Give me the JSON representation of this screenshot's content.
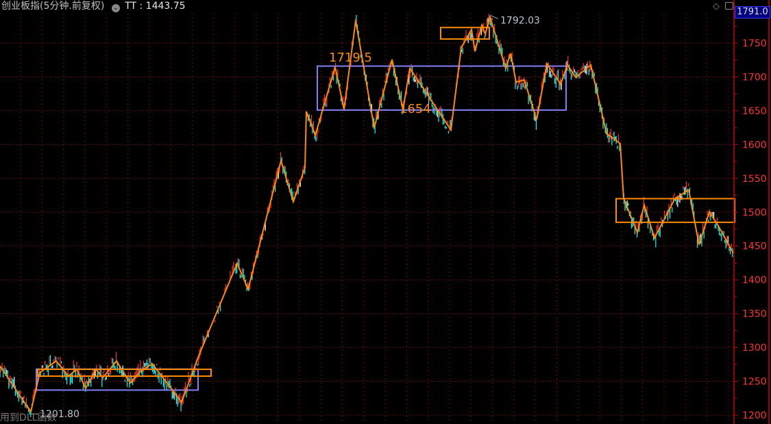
{
  "header": {
    "title": "创业板指(5分钟.前复权)",
    "indicator_icon": "chevron-down-circle-icon",
    "indicator_label": "TT",
    "indicator_value": "1443.75"
  },
  "footer_text": "用到DLL函数",
  "toolbar_icons": [
    "diamond-icon",
    "toggle-panel-icon"
  ],
  "current_price_label": "1791.0",
  "colors": {
    "background": "#000000",
    "axis": "#cc0000",
    "grid": "#b00000",
    "tick_label": "#ff3232",
    "zigzag": "#ff8c00",
    "box_blue": "#8080ff",
    "box_orange": "#ff8c00",
    "bar_up": "#ff3232",
    "bar_down": "#00ffff",
    "bar_flat": "#ffffff"
  },
  "chart_data": {
    "type": "line",
    "title": "",
    "ylim": [
      1195,
      1800
    ],
    "y_ticks": [
      1200,
      1250,
      1300,
      1350,
      1400,
      1450,
      1500,
      1550,
      1600,
      1650,
      1700,
      1750
    ],
    "y_tick_labels": [
      "1200",
      "1250",
      "1300",
      "1350",
      "1400",
      "1450",
      "1500",
      "1550",
      "1600",
      "1650",
      "1700",
      "1750"
    ],
    "grid": true,
    "zigzag": [
      [
        0,
        1272.8
      ],
      [
        30,
        1227.3
      ],
      [
        45,
        1205.0
      ],
      [
        58,
        1262.7
      ],
      [
        82,
        1279.9
      ],
      [
        100,
        1257.6
      ],
      [
        112,
        1267.7
      ],
      [
        125,
        1239.4
      ],
      [
        140,
        1267.7
      ],
      [
        150,
        1255.6
      ],
      [
        170,
        1279.9
      ],
      [
        190,
        1247.5
      ],
      [
        205,
        1264.7
      ],
      [
        222,
        1275.8
      ],
      [
        240,
        1252.6
      ],
      [
        265,
        1219.2
      ],
      [
        290,
        1288.0
      ],
      [
        346,
        1424.4
      ],
      [
        362,
        1386.0
      ],
      [
        410,
        1576.0
      ],
      [
        428,
        1515.4
      ],
      [
        445,
        1566.0
      ],
      [
        447,
        1648.9
      ],
      [
        460,
        1613.5
      ],
      [
        489,
        1714.6
      ],
      [
        502,
        1651.9
      ],
      [
        519,
        1783.3
      ],
      [
        546,
        1624.6
      ],
      [
        572,
        1725.7
      ],
      [
        588,
        1651.9
      ],
      [
        598,
        1712.6
      ],
      [
        658,
        1621.6
      ],
      [
        673,
        1742.9
      ],
      [
        688,
        1770.2
      ],
      [
        693,
        1737.9
      ],
      [
        703,
        1776.3
      ],
      [
        708,
        1763.1
      ],
      [
        715,
        1788.4
      ],
      [
        738,
        1712.6
      ],
      [
        745,
        1734.8
      ],
      [
        753,
        1692.4
      ],
      [
        765,
        1695.4
      ],
      [
        783,
        1636.8
      ],
      [
        798,
        1719.7
      ],
      [
        818,
        1689.3
      ],
      [
        828,
        1717.6
      ],
      [
        840,
        1699.4
      ],
      [
        862,
        1717.6
      ],
      [
        885,
        1616.5
      ],
      [
        905,
        1601.4
      ],
      [
        910,
        1520.5
      ],
      [
        930,
        1469.9
      ],
      [
        940,
        1510.4
      ],
      [
        955,
        1461.8
      ],
      [
        985,
        1520.5
      ],
      [
        1005,
        1532.6
      ],
      [
        1020,
        1451.7
      ],
      [
        1035,
        1500.3
      ],
      [
        1048,
        1480.0
      ],
      [
        1070,
        1439.6
      ]
    ],
    "boxes": [
      {
        "color": "blue",
        "x": [
          53,
          289
        ],
        "price": [
          1237,
          1268
        ]
      },
      {
        "color": "orange",
        "x": [
          55,
          308
        ],
        "price": [
          1257.6,
          1267.7
        ]
      },
      {
        "color": "blue",
        "x": [
          463,
          826
        ],
        "price": [
          1651,
          1716
        ]
      },
      {
        "color": "orange",
        "x": [
          643,
          714
        ],
        "price": [
          1756,
          1773
        ]
      },
      {
        "color": "orange",
        "x": [
          899,
          1072
        ],
        "price": [
          1485,
          1520
        ]
      }
    ],
    "annotations": [
      {
        "text": "1792.03",
        "x": 715,
        "price": 1792.03,
        "style": "extreme-high"
      },
      {
        "text": "1201.80",
        "x": 45,
        "price": 1201.8,
        "style": "extreme-low"
      },
      {
        "text": "1719.5",
        "x": 480,
        "price": 1719.5,
        "style": "orange-label"
      },
      {
        "text": "1654",
        "x": 583,
        "price": 1654,
        "style": "orange-label"
      }
    ]
  }
}
